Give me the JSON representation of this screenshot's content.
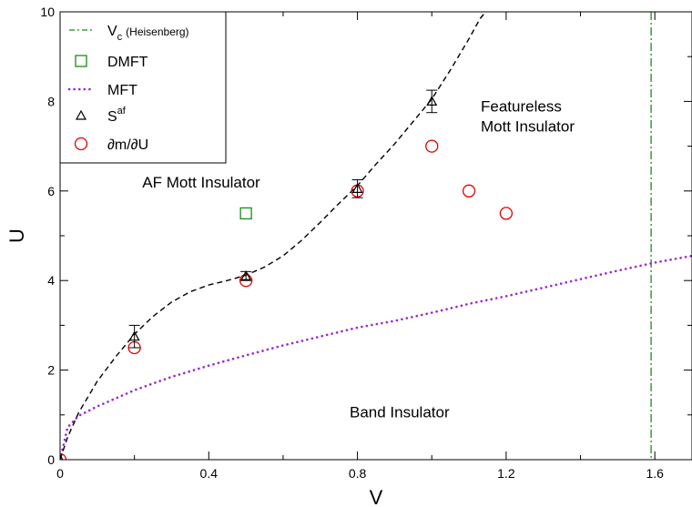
{
  "chart_data": {
    "type": "scatter",
    "xlabel": "V",
    "ylabel": "U",
    "xlim": [
      0,
      1.7
    ],
    "ylim": [
      0,
      10
    ],
    "x_ticks": [
      {
        "value": 0,
        "label": "0"
      },
      {
        "value": 0.4,
        "label": "0.4"
      },
      {
        "value": 0.8,
        "label": "0.8"
      },
      {
        "value": 1.2,
        "label": "1.2"
      },
      {
        "value": 1.6,
        "label": "1.6"
      }
    ],
    "y_ticks": [
      {
        "value": 0,
        "label": "0"
      },
      {
        "value": 2,
        "label": "2"
      },
      {
        "value": 4,
        "label": "4"
      },
      {
        "value": 6,
        "label": "6"
      },
      {
        "value": 8,
        "label": "8"
      },
      {
        "value": 10,
        "label": "10"
      }
    ],
    "grid": false,
    "legend_position": "top-left",
    "legend": [
      {
        "key": "vc",
        "main": "V",
        "sub": "c",
        "extra": "(Heisenberg)"
      },
      {
        "key": "dmft",
        "main": "DMFT"
      },
      {
        "key": "mft",
        "main": "MFT"
      },
      {
        "key": "saf",
        "main": "S",
        "sup": "af"
      },
      {
        "key": "dmdu",
        "main": "∂m/∂U"
      }
    ],
    "annotations": [
      {
        "key": "af",
        "text": "AF Mott Insulator",
        "x": 0.28,
        "y": 6.2
      },
      {
        "key": "feat1",
        "text": "Featureless",
        "x": 1.12,
        "y": 7.9
      },
      {
        "key": "feat2",
        "text": "Mott Insulator",
        "x": 1.12,
        "y": 7.45
      },
      {
        "key": "band",
        "text": "Band Insulator",
        "x": 1.12,
        "y": 1.07
      }
    ],
    "series": {
      "vc": {
        "type": "vline",
        "x": 1.59,
        "color": "#1a8c1a",
        "style": "dash-dot"
      },
      "dmft": {
        "type": "scatter",
        "marker": "square",
        "color": "#1a8c1a",
        "points": [
          [
            0.5,
            5.5
          ]
        ]
      },
      "mft": {
        "type": "line",
        "color": "#9b26d4",
        "style": "dotted",
        "points": [
          [
            0.0,
            0.0
          ],
          [
            0.02,
            0.72
          ],
          [
            0.05,
            0.98
          ],
          [
            0.1,
            1.19
          ],
          [
            0.2,
            1.55
          ],
          [
            0.3,
            1.85
          ],
          [
            0.4,
            2.1
          ],
          [
            0.5,
            2.33
          ],
          [
            0.6,
            2.55
          ],
          [
            0.7,
            2.75
          ],
          [
            0.8,
            2.95
          ],
          [
            0.9,
            3.1
          ],
          [
            1.0,
            3.28
          ],
          [
            1.1,
            3.48
          ],
          [
            1.2,
            3.65
          ],
          [
            1.3,
            3.84
          ],
          [
            1.4,
            4.03
          ],
          [
            1.5,
            4.22
          ],
          [
            1.6,
            4.4
          ],
          [
            1.7,
            4.55
          ]
        ]
      },
      "saf": {
        "type": "scatter",
        "marker": "triangle",
        "color": "#000000",
        "points": [
          [
            0.0,
            0.0,
            0
          ],
          [
            0.2,
            2.75,
            0.25
          ],
          [
            0.5,
            4.1,
            0.1
          ],
          [
            0.8,
            6.05,
            0.2
          ],
          [
            1.0,
            8.0,
            0.25
          ]
        ]
      },
      "dmdu": {
        "type": "scatter",
        "marker": "circle",
        "color": "#e00000",
        "points": [
          [
            0.0,
            0.0
          ],
          [
            0.2,
            2.5
          ],
          [
            0.5,
            4.0
          ],
          [
            0.8,
            6.0
          ],
          [
            1.0,
            7.0
          ],
          [
            1.1,
            6.0
          ],
          [
            1.2,
            5.5
          ]
        ]
      },
      "fit": {
        "type": "line",
        "color": "#000000",
        "style": "dashed",
        "points": [
          [
            0.0,
            0.0
          ],
          [
            0.02,
            0.5
          ],
          [
            0.05,
            1.05
          ],
          [
            0.1,
            1.75
          ],
          [
            0.15,
            2.3
          ],
          [
            0.2,
            2.8
          ],
          [
            0.25,
            3.2
          ],
          [
            0.3,
            3.52
          ],
          [
            0.35,
            3.75
          ],
          [
            0.4,
            3.9
          ],
          [
            0.45,
            4.0
          ],
          [
            0.5,
            4.12
          ],
          [
            0.55,
            4.3
          ],
          [
            0.6,
            4.55
          ],
          [
            0.65,
            4.9
          ],
          [
            0.7,
            5.3
          ],
          [
            0.75,
            5.72
          ],
          [
            0.8,
            6.12
          ],
          [
            0.85,
            6.6
          ],
          [
            0.9,
            7.05
          ],
          [
            0.95,
            7.55
          ],
          [
            1.0,
            8.05
          ],
          [
            1.05,
            8.7
          ],
          [
            1.1,
            9.4
          ],
          [
            1.13,
            9.85
          ],
          [
            1.145,
            10.0
          ]
        ]
      }
    }
  }
}
